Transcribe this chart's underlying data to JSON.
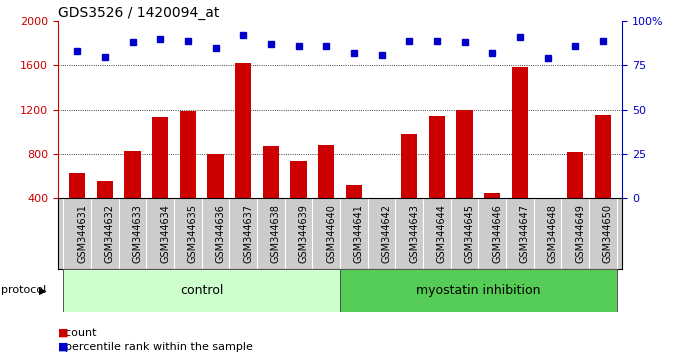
{
  "title": "GDS3526 / 1420094_at",
  "samples": [
    "GSM344631",
    "GSM344632",
    "GSM344633",
    "GSM344634",
    "GSM344635",
    "GSM344636",
    "GSM344637",
    "GSM344638",
    "GSM344639",
    "GSM344640",
    "GSM344641",
    "GSM344642",
    "GSM344643",
    "GSM344644",
    "GSM344645",
    "GSM344646",
    "GSM344647",
    "GSM344648",
    "GSM344649",
    "GSM344650"
  ],
  "counts": [
    630,
    560,
    830,
    1130,
    1185,
    800,
    1620,
    870,
    740,
    880,
    520,
    330,
    980,
    1140,
    1200,
    450,
    1590,
    330,
    820,
    1150
  ],
  "percentile_ranks": [
    83,
    80,
    88,
    90,
    89,
    85,
    92,
    87,
    86,
    86,
    82,
    81,
    89,
    89,
    88,
    82,
    91,
    79,
    86,
    89
  ],
  "control_count": 10,
  "ylim_left": [
    400,
    2000
  ],
  "ylim_right": [
    0,
    100
  ],
  "yticks_left": [
    400,
    800,
    1200,
    1600,
    2000
  ],
  "yticks_right": [
    0,
    25,
    50,
    75,
    100
  ],
  "bar_color": "#cc0000",
  "dot_color": "#0000cc",
  "control_color": "#ccffcc",
  "myostatin_color": "#55cc55",
  "protocol_band_edge": "#888888",
  "sample_box_color": "#cccccc",
  "control_label": "control",
  "myostatin_label": "myostatin inhibition",
  "protocol_label": "protocol",
  "legend_count_label": "count",
  "legend_pct_label": "percentile rank within the sample",
  "title_fontsize": 10,
  "label_fontsize": 7,
  "legend_fontsize": 8,
  "protocol_fontsize": 8,
  "band_fontsize": 9
}
